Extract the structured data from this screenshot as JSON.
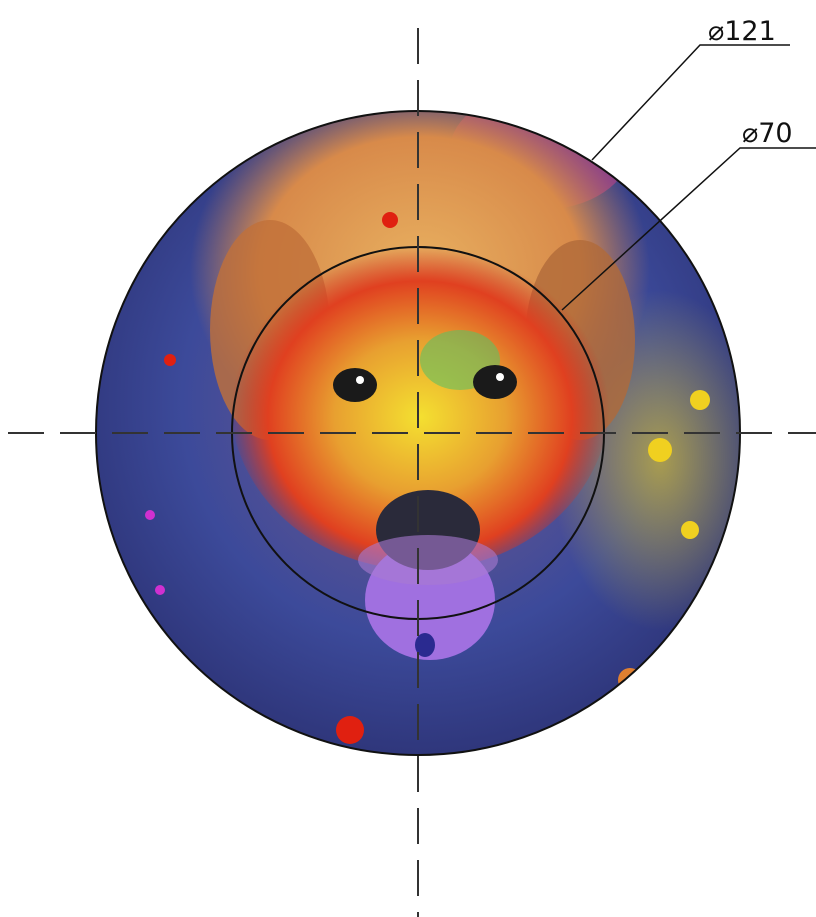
{
  "dimensions": [
    {
      "label": "⌀121"
    },
    {
      "label": "⌀70"
    }
  ]
}
